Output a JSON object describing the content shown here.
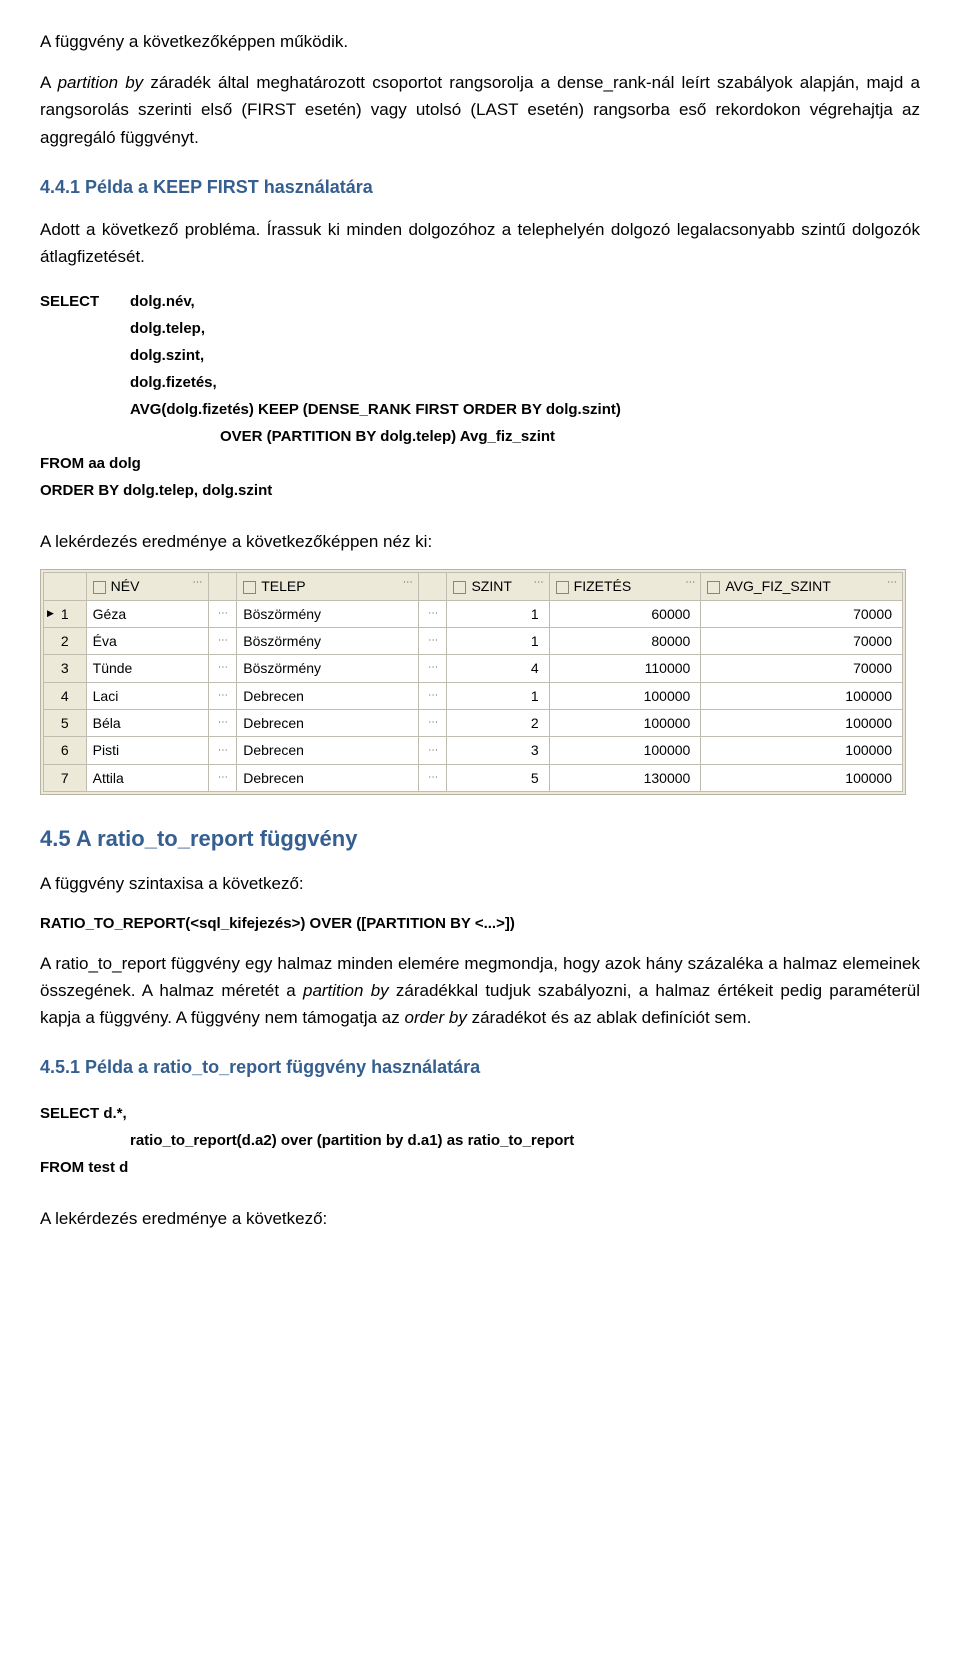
{
  "p1": "A függvény a következőképpen működik.",
  "p2": "A partition by záradék által meghatározott csoportot rangsorolja a dense_rank-nál leírt szabályok alapján, majd a rangsorolás szerinti első (FIRST esetén) vagy utolsó (LAST esetén) rangsorba eső rekordokon végrehajtja az aggregáló függvényt.",
  "h441": "4.4.1    Példa a KEEP FIRST használatára",
  "p3": "Adott a következő probléma. Írassuk ki minden dolgozóhoz a telephelyén dolgozó legalacsonyabb szintű dolgozók átlagfizetését.",
  "sql1": {
    "l1_kw": "SELECT",
    "l1": "dolg.név,",
    "l2": "dolg.telep,",
    "l3": "dolg.szint,",
    "l4": "dolg.fizetés,",
    "l5": "AVG(dolg.fizetés) KEEP (DENSE_RANK FIRST ORDER BY dolg.szint)",
    "l6": "OVER (PARTITION BY dolg.telep) Avg_fiz_szint",
    "l7": "FROM aa dolg",
    "l8": "ORDER BY dolg.telep, dolg.szint"
  },
  "p4": "A lekérdezés eredménye a következőképpen néz ki:",
  "table": {
    "columns": [
      "NÉV",
      "TELEP",
      "SZINT",
      "FIZETÉS",
      "AVG_FIZ_SZINT"
    ],
    "col_widths": [
      "110px",
      "170px",
      "90px",
      "140px",
      "190px"
    ],
    "num_cols": [
      2,
      3,
      4
    ],
    "dots_after_col": [
      0,
      1
    ],
    "rows": [
      [
        "Géza",
        "Böszörmény",
        "1",
        "60000",
        "70000"
      ],
      [
        "Éva",
        "Böszörmény",
        "1",
        "80000",
        "70000"
      ],
      [
        "Tünde",
        "Böszörmény",
        "4",
        "110000",
        "70000"
      ],
      [
        "Laci",
        "Debrecen",
        "1",
        "100000",
        "100000"
      ],
      [
        "Béla",
        "Debrecen",
        "2",
        "100000",
        "100000"
      ],
      [
        "Pisti",
        "Debrecen",
        "3",
        "100000",
        "100000"
      ],
      [
        "Attila",
        "Debrecen",
        "5",
        "130000",
        "100000"
      ]
    ],
    "bg": "#ece9d8",
    "border": "#c0bdb0"
  },
  "h45": "4.5   A ratio_to_report függvény",
  "p5": "A függvény szintaxisa a következő:",
  "syntax": "RATIO_TO_REPORT(<sql_kifejezés>) OVER ([PARTITION BY <...>])",
  "p6": "A ratio_to_report függvény egy halmaz minden elemére megmondja, hogy azok hány százaléka a halmaz elemeinek összegének. A halmaz méretét a partition by záradékkal tudjuk szabályozni, a halmaz értékeit pedig paraméterül kapja a függvény. A függvény nem támogatja az order by záradékot és az ablak definíciót sem.",
  "h451": "4.5.1    Példa a ratio_to_report függvény használatára",
  "sql2": {
    "l1": "SELECT d.*,",
    "l2": "ratio_to_report(d.a2) over (partition by d.a1) as ratio_to_report",
    "l3": "FROM test d"
  },
  "p7": "A lekérdezés eredménye a következő:"
}
